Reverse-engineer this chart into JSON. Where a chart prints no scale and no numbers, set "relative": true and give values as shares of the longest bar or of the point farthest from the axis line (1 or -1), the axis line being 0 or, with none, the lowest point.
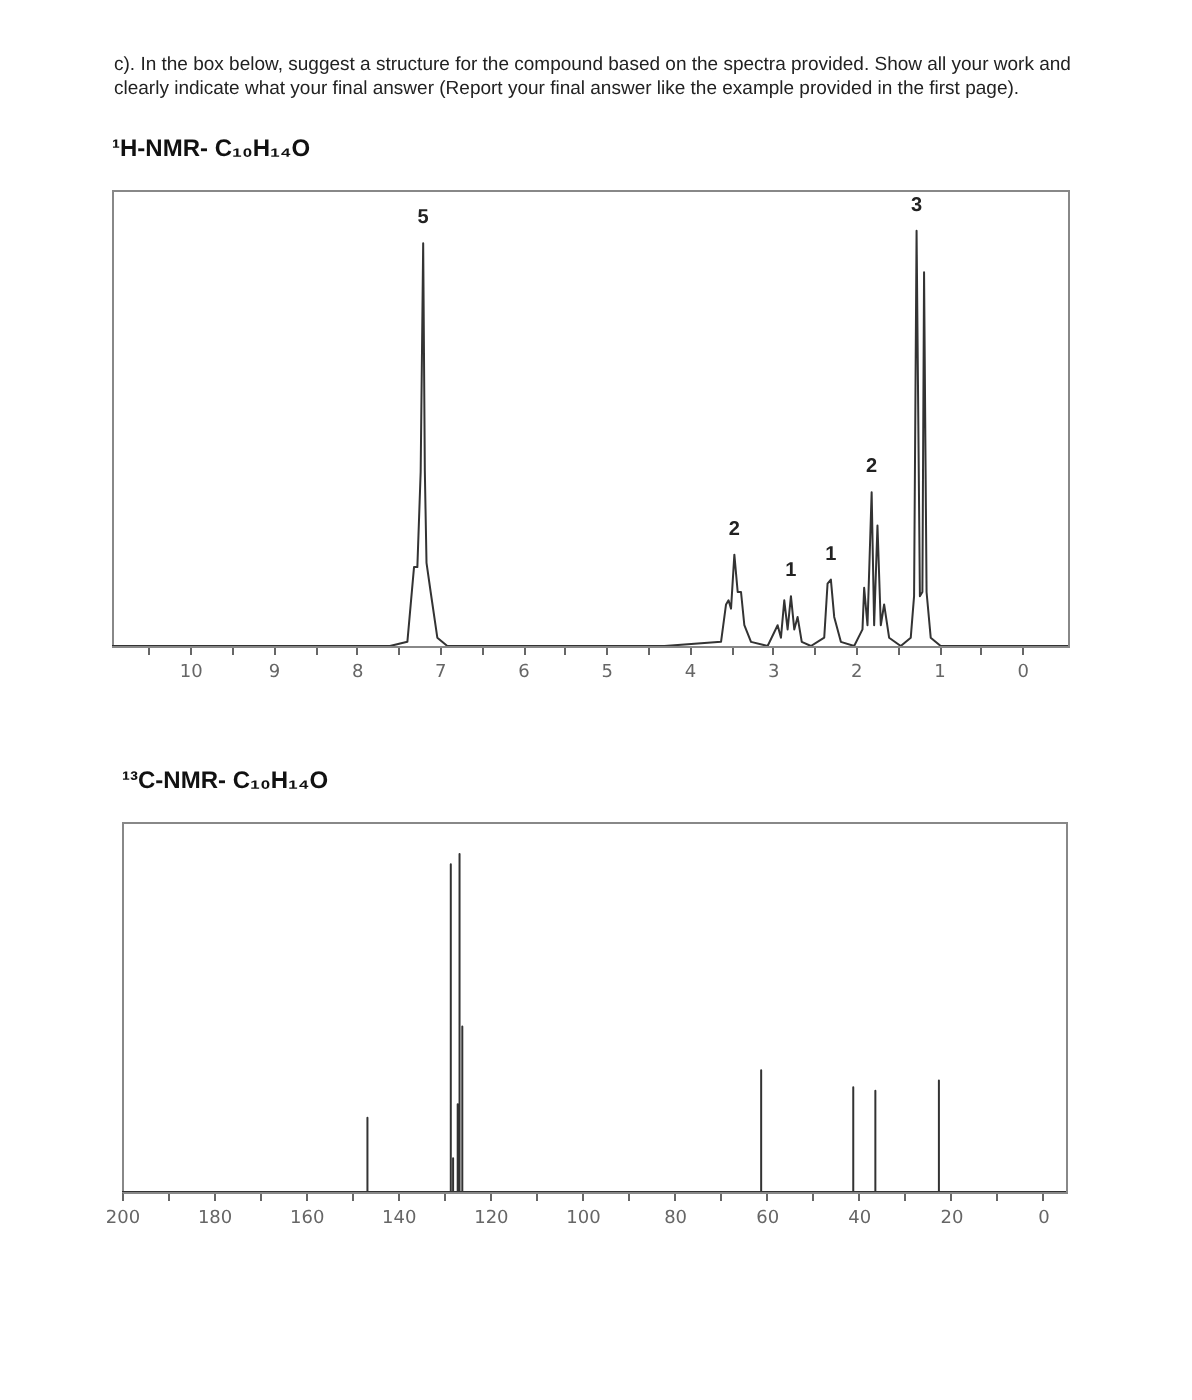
{
  "chart_data": [
    {
      "type": "line",
      "title": "¹H-NMR- C₁₀H₁₄O",
      "relative": true,
      "annotations": [
        "c). In the box below, suggest a structure for the compound based on the spectra provided. Show all your work and clearly indicate what your final answer (Report your final answer like the example provided in the first page).",
        {
          "text": "5",
          "x": 7.2,
          "y": 0.97
        },
        {
          "text": "2",
          "x": 3.46,
          "y": 0.22
        },
        {
          "text": "1",
          "x": 2.78,
          "y": 0.12
        },
        {
          "text": "1",
          "x": 2.3,
          "y": 0.16
        },
        {
          "text": "2",
          "x": 1.81,
          "y": 0.37
        },
        {
          "text": "3",
          "x": 1.27,
          "y": 1
        }
      ],
      "xlim": [
        10.94,
        -0.55
      ],
      "xticks": [
        {
          "value": 10.5,
          "label": null
        },
        10,
        {
          "value": 9.5,
          "label": null
        },
        9,
        {
          "value": 8.5,
          "label": null
        },
        8,
        {
          "value": 7.5,
          "label": null
        },
        7,
        {
          "value": 6.5,
          "label": null
        },
        6,
        {
          "value": 5.5,
          "label": null
        },
        5,
        {
          "value": 4.5,
          "label": null
        },
        4,
        {
          "value": 3.5,
          "label": null
        },
        3,
        {
          "value": 2.5,
          "label": null
        },
        2,
        {
          "value": 1.5,
          "label": null
        },
        1,
        {
          "value": 0.5,
          "label": null
        },
        0
      ],
      "series": [
        {
          "color": "#333333",
          "x": [
            10.94,
            7.6,
            7.39,
            7.31,
            7.27,
            7.23,
            7.2,
            7.18,
            7.16,
            7.11,
            7.03,
            6.91,
            4.3,
            3.62,
            3.56,
            3.53,
            3.5,
            3.46,
            3.42,
            3.38,
            3.34,
            3.26,
            3.06,
            2.94,
            2.9,
            2.86,
            2.82,
            2.78,
            2.74,
            2.7,
            2.65,
            2.54,
            2.38,
            2.34,
            2.3,
            2.26,
            2.18,
            2.02,
            1.92,
            1.9,
            1.86,
            1.81,
            1.78,
            1.74,
            1.7,
            1.66,
            1.6,
            1.46,
            1.34,
            1.3,
            1.27,
            1.23,
            1.2,
            1.18,
            1.15,
            1.1,
            0.98,
            -0.55
          ],
          "values": [
            0,
            0,
            0.01,
            0.19,
            0.19,
            0.42,
            0.97,
            0.42,
            0.2,
            0.13,
            0.02,
            0,
            0,
            0.01,
            0.1,
            0.11,
            0.09,
            0.22,
            0.13,
            0.13,
            0.05,
            0.01,
            0,
            0.05,
            0.02,
            0.11,
            0.04,
            0.12,
            0.04,
            0.07,
            0.01,
            0,
            0.02,
            0.15,
            0.16,
            0.07,
            0.01,
            0,
            0.04,
            0.14,
            0.05,
            0.37,
            0.05,
            0.29,
            0.05,
            0.1,
            0.02,
            0,
            0.02,
            0.12,
            1,
            0.12,
            0.13,
            0.9,
            0.13,
            0.02,
            0,
            0
          ]
        }
      ]
    },
    {
      "type": "line",
      "title": "¹³C-NMR- C₁₀H₁₄O",
      "relative": true,
      "xlim": [
        200,
        -5
      ],
      "xticks": [
        200,
        {
          "value": 190,
          "label": null
        },
        180,
        {
          "value": 170,
          "label": null
        },
        160,
        {
          "value": 150,
          "label": null
        },
        140,
        {
          "value": 130,
          "label": null
        },
        120,
        {
          "value": 110,
          "label": null
        },
        100,
        {
          "value": 90,
          "label": null
        },
        80,
        {
          "value": 70,
          "label": null
        },
        60,
        {
          "value": 50,
          "label": null
        },
        40,
        {
          "value": 30,
          "label": null
        },
        20,
        {
          "value": 10,
          "label": null
        },
        0
      ],
      "series": [
        {
          "color": "#333333",
          "x": [
            200,
            146.7,
            146.7,
            146.7,
            128.6,
            128.6,
            128.6,
            128.1,
            128.1,
            128.1,
            127.1,
            127.1,
            127.1,
            126.7,
            126.7,
            126.7,
            126.1,
            126.1,
            126.1,
            61.2,
            61.2,
            61.2,
            41.2,
            41.2,
            41.2,
            36.4,
            36.4,
            36.4,
            22.6,
            22.6,
            22.6,
            -5
          ],
          "values": [
            0,
            0,
            0.22,
            0,
            0,
            0.97,
            0,
            0,
            0.1,
            0,
            0,
            0.26,
            0,
            0,
            1,
            0,
            0,
            0.49,
            0,
            0,
            0.36,
            0,
            0,
            0.31,
            0,
            0,
            0.3,
            0,
            0,
            0.33,
            0,
            0
          ]
        }
      ]
    }
  ]
}
